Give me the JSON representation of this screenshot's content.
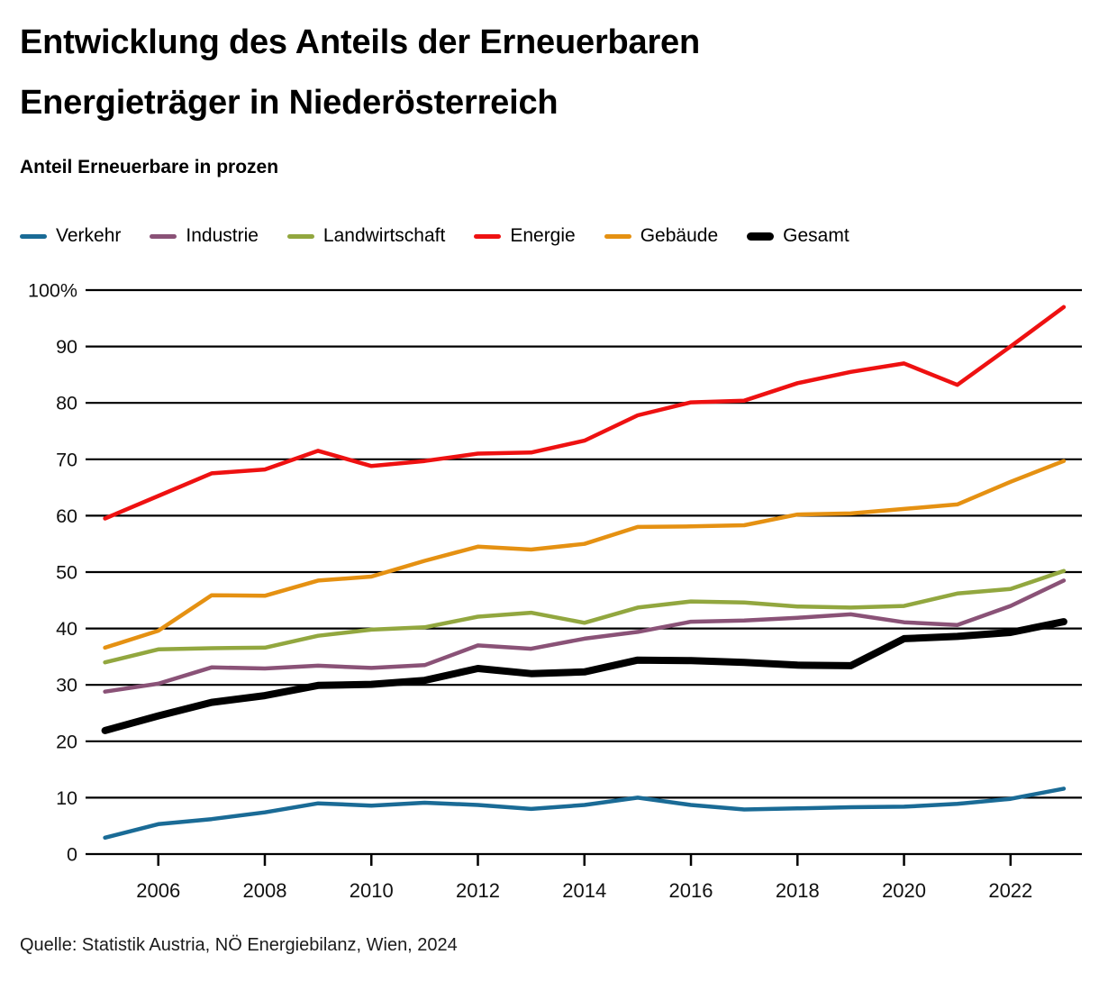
{
  "header": {
    "title": "Entwicklung des Anteils der Erneuerbaren Energieträger in Niederösterreich",
    "subtitle": "Anteil Erneuerbare in prozen"
  },
  "source": "Quelle: Statistik Austria, NÖ Energiebilanz, Wien, 2024",
  "chart_data": {
    "type": "line",
    "title": "Entwicklung des Anteils der Erneuerbaren Energieträger in Niederösterreich",
    "ylabel": "Anteil Erneuerbare in prozen",
    "grid": true,
    "legend_position": "top",
    "ylim": [
      0,
      100
    ],
    "y_ticks": [
      0,
      10,
      20,
      30,
      40,
      50,
      60,
      70,
      80,
      90,
      100
    ],
    "y_top_label": "100%",
    "x_tick_years": [
      2006,
      2008,
      2010,
      2012,
      2014,
      2016,
      2018,
      2020,
      2022
    ],
    "x": [
      2005,
      2006,
      2007,
      2008,
      2009,
      2010,
      2011,
      2012,
      2013,
      2014,
      2015,
      2016,
      2017,
      2018,
      2019,
      2020,
      2021,
      2022,
      2023
    ],
    "series": [
      {
        "name": "Verkehr",
        "color": "#1a6b96",
        "width": 4.5,
        "values": [
          2.9,
          5.3,
          6.2,
          7.4,
          9.0,
          8.6,
          9.1,
          8.7,
          8.0,
          8.7,
          10.0,
          8.7,
          7.9,
          8.1,
          8.3,
          8.4,
          8.9,
          9.8,
          11.6
        ]
      },
      {
        "name": "Industrie",
        "color": "#8a5277",
        "width": 4.5,
        "values": [
          28.8,
          30.2,
          33.1,
          32.9,
          33.4,
          33.0,
          33.5,
          37.0,
          36.4,
          38.2,
          39.4,
          41.2,
          41.4,
          41.9,
          42.5,
          41.1,
          40.6,
          44.0,
          48.5
        ]
      },
      {
        "name": "Landwirtschaft",
        "color": "#92a73f",
        "width": 4.5,
        "values": [
          34.0,
          36.3,
          36.5,
          36.6,
          38.7,
          39.8,
          40.2,
          42.1,
          42.8,
          41.0,
          43.7,
          44.8,
          44.6,
          43.9,
          43.7,
          44.0,
          46.2,
          47.0,
          50.2
        ]
      },
      {
        "name": "Energie",
        "color": "#ee1111",
        "width": 4.5,
        "values": [
          59.5,
          63.5,
          67.5,
          68.2,
          71.5,
          68.8,
          69.7,
          71.0,
          71.2,
          73.3,
          77.8,
          80.1,
          80.4,
          83.5,
          85.5,
          87.0,
          83.2,
          90.0,
          97.0
        ]
      },
      {
        "name": "Gebäude",
        "color": "#e59112",
        "width": 4.5,
        "values": [
          36.6,
          39.6,
          45.9,
          45.8,
          48.5,
          49.2,
          52.0,
          54.5,
          54.0,
          55.0,
          58.0,
          58.1,
          58.3,
          60.2,
          60.4,
          61.2,
          62.0,
          66.0,
          69.7
        ]
      },
      {
        "name": "Gesamt",
        "color": "#000000",
        "width": 8,
        "values": [
          21.9,
          24.5,
          26.9,
          28.1,
          29.9,
          30.1,
          30.8,
          32.9,
          32.0,
          32.3,
          34.4,
          34.3,
          34.0,
          33.5,
          33.4,
          38.2,
          38.6,
          39.3,
          41.2
        ]
      }
    ]
  }
}
